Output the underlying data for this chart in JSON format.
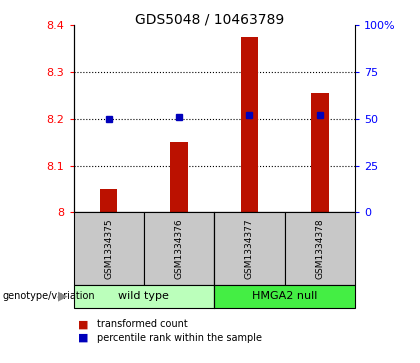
{
  "title": "GDS5048 / 10463789",
  "samples": [
    "GSM1334375",
    "GSM1334376",
    "GSM1334377",
    "GSM1334378"
  ],
  "red_values": [
    8.05,
    8.15,
    8.375,
    8.255
  ],
  "blue_values_pct": [
    50,
    51,
    52,
    52
  ],
  "ylim_left": [
    8.0,
    8.4
  ],
  "ylim_right": [
    0,
    100
  ],
  "yticks_left": [
    8.0,
    8.1,
    8.2,
    8.3,
    8.4
  ],
  "ytick_labels_left": [
    "8",
    "8.1",
    "8.2",
    "8.3",
    "8.4"
  ],
  "yticks_right": [
    0,
    25,
    50,
    75,
    100
  ],
  "ytick_labels_right": [
    "0",
    "25",
    "50",
    "75",
    "100%"
  ],
  "groups": [
    {
      "label": "wild type",
      "indices": [
        0,
        1
      ],
      "color": "#bbffbb"
    },
    {
      "label": "HMGA2 null",
      "indices": [
        2,
        3
      ],
      "color": "#44ee44"
    }
  ],
  "genotype_label": "genotype/variation",
  "legend_red": "transformed count",
  "legend_blue": "percentile rank within the sample",
  "bar_color": "#bb1100",
  "dot_color": "#0000bb",
  "bg_color": "#c8c8c8",
  "bar_width": 0.25
}
